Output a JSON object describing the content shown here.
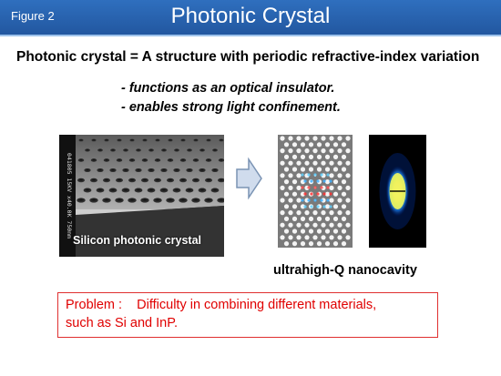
{
  "header": {
    "figure_label": "Figure 2",
    "title": "Photonic Crystal"
  },
  "headline": "Photonic crystal = A structure with periodic refractive-index variation",
  "bullets": [
    "- functions as an optical insulator.",
    "- enables strong light confinement."
  ],
  "sem_image": {
    "caption": "Silicon photonic crystal",
    "side_label": "041805 15KV x40.0K 750nm"
  },
  "nanocavity": {
    "label": "ultrahigh-Q nanocavity"
  },
  "problem": {
    "line1": "Problem :    Difficulty in combining different materials,",
    "line2": "such as Si and InP."
  },
  "colors": {
    "title_bar": "#2a64b0",
    "problem_text": "#e00000",
    "problem_border": "#e03030"
  }
}
